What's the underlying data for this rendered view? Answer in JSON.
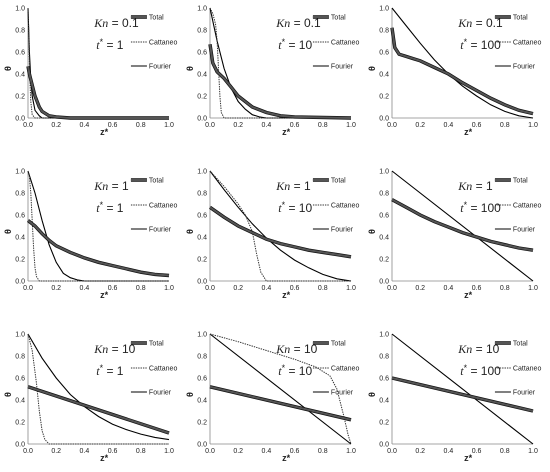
{
  "figure": {
    "legend_labels": [
      "Total",
      "Cattaneo",
      "Fourier"
    ],
    "xlabel": "z*",
    "ylabel": "θ",
    "x_ticks": [
      "0.0",
      "0.2",
      "0.4",
      "0.6",
      "0.8",
      "1.0"
    ],
    "y_ticks": [
      "0.0",
      "0.2",
      "0.4",
      "0.6",
      "0.8",
      "1.0"
    ],
    "colors": {
      "total": "#555555",
      "total_edge": "#111111",
      "cattaneo": "#333333",
      "fourier": "#000000"
    }
  },
  "chart_data": [
    {
      "type": "line",
      "kn": "0.1",
      "t": "1",
      "xlim": [
        0,
        1
      ],
      "ylim": [
        0,
        1
      ],
      "series": [
        {
          "name": "Total",
          "x": [
            0,
            0.01,
            0.03,
            0.05,
            0.08,
            0.1,
            0.15,
            0.2,
            0.3,
            0.5,
            1.0
          ],
          "y": [
            0.47,
            0.4,
            0.3,
            0.2,
            0.1,
            0.06,
            0.02,
            0.01,
            0,
            0,
            0
          ]
        },
        {
          "name": "Cattaneo",
          "x": [
            0,
            0.005,
            0.01,
            0.015,
            0.02,
            0.03,
            0.05,
            1.0
          ],
          "y": [
            1.0,
            0.8,
            0.5,
            0.3,
            0.15,
            0.03,
            0,
            0
          ]
        },
        {
          "name": "Fourier",
          "x": [
            0,
            0.005,
            0.01,
            0.02,
            0.03,
            0.05,
            0.08,
            0.1,
            1.0
          ],
          "y": [
            1.0,
            0.8,
            0.6,
            0.35,
            0.2,
            0.07,
            0.02,
            0,
            0
          ]
        }
      ]
    },
    {
      "type": "line",
      "kn": "0.1",
      "t": "10",
      "xlim": [
        0,
        1
      ],
      "ylim": [
        0,
        1
      ],
      "series": [
        {
          "name": "Total",
          "x": [
            0,
            0.02,
            0.05,
            0.1,
            0.15,
            0.2,
            0.3,
            0.4,
            0.5,
            0.6,
            1.0
          ],
          "y": [
            0.67,
            0.5,
            0.42,
            0.36,
            0.28,
            0.2,
            0.1,
            0.05,
            0.02,
            0.01,
            0
          ]
        },
        {
          "name": "Cattaneo",
          "x": [
            0,
            0.02,
            0.04,
            0.05,
            0.06,
            0.07,
            0.08,
            0.1,
            1.0
          ],
          "y": [
            1.0,
            0.95,
            0.85,
            0.7,
            0.45,
            0.2,
            0.05,
            0,
            0
          ]
        },
        {
          "name": "Fourier",
          "x": [
            0,
            0.05,
            0.1,
            0.15,
            0.2,
            0.25,
            0.3,
            0.35,
            0.4,
            1.0
          ],
          "y": [
            1.0,
            0.7,
            0.45,
            0.27,
            0.15,
            0.08,
            0.03,
            0.01,
            0,
            0
          ]
        }
      ]
    },
    {
      "type": "line",
      "kn": "0.1",
      "t": "100",
      "xlim": [
        0,
        1
      ],
      "ylim": [
        0,
        1
      ],
      "series": [
        {
          "name": "Total",
          "x": [
            0,
            0.02,
            0.05,
            0.1,
            0.15,
            0.2,
            0.3,
            0.4,
            0.5,
            0.6,
            0.7,
            0.8,
            0.9,
            1.0
          ],
          "y": [
            0.82,
            0.64,
            0.58,
            0.56,
            0.54,
            0.52,
            0.46,
            0.4,
            0.32,
            0.25,
            0.18,
            0.12,
            0.07,
            0.04
          ]
        },
        {
          "name": "Cattaneo",
          "x": [
            0,
            0.02,
            0.05,
            0.1,
            0.2,
            0.3,
            0.4,
            0.5,
            0.6,
            0.7,
            0.8,
            0.9,
            1.0
          ],
          "y": [
            0.8,
            0.64,
            0.59,
            0.56,
            0.52,
            0.46,
            0.4,
            0.32,
            0.25,
            0.18,
            0.12,
            0.07,
            0.04
          ]
        },
        {
          "name": "Fourier",
          "x": [
            0,
            0.1,
            0.2,
            0.3,
            0.4,
            0.5,
            0.6,
            0.7,
            0.8,
            0.9,
            1.0
          ],
          "y": [
            1.0,
            0.84,
            0.68,
            0.53,
            0.4,
            0.29,
            0.2,
            0.12,
            0.06,
            0.02,
            0
          ]
        }
      ]
    },
    {
      "type": "line",
      "kn": "1",
      "t": "1",
      "xlim": [
        0,
        1
      ],
      "ylim": [
        0,
        1
      ],
      "series": [
        {
          "name": "Total",
          "x": [
            0,
            0.05,
            0.1,
            0.15,
            0.2,
            0.3,
            0.4,
            0.5,
            0.6,
            0.7,
            0.8,
            0.9,
            1.0
          ],
          "y": [
            0.55,
            0.5,
            0.43,
            0.37,
            0.32,
            0.26,
            0.21,
            0.17,
            0.14,
            0.11,
            0.08,
            0.06,
            0.05
          ]
        },
        {
          "name": "Cattaneo",
          "x": [
            0,
            0.01,
            0.02,
            0.03,
            0.04,
            0.05,
            0.06,
            0.08,
            1.0
          ],
          "y": [
            1.0,
            0.95,
            0.8,
            0.55,
            0.3,
            0.12,
            0.04,
            0,
            0
          ]
        },
        {
          "name": "Fourier",
          "x": [
            0,
            0.05,
            0.1,
            0.15,
            0.2,
            0.25,
            0.3,
            0.35,
            0.4,
            0.5,
            1.0
          ],
          "y": [
            1.0,
            0.8,
            0.55,
            0.33,
            0.17,
            0.07,
            0.03,
            0.01,
            0,
            0,
            0
          ]
        }
      ]
    },
    {
      "type": "line",
      "kn": "1",
      "t": "10",
      "xlim": [
        0,
        1
      ],
      "ylim": [
        0,
        1
      ],
      "series": [
        {
          "name": "Total",
          "x": [
            0,
            0.1,
            0.2,
            0.3,
            0.4,
            0.5,
            0.6,
            0.7,
            0.8,
            0.9,
            1.0
          ],
          "y": [
            0.67,
            0.58,
            0.5,
            0.44,
            0.38,
            0.34,
            0.31,
            0.28,
            0.26,
            0.24,
            0.22
          ]
        },
        {
          "name": "Cattaneo",
          "x": [
            0,
            0.1,
            0.2,
            0.25,
            0.3,
            0.33,
            0.36,
            0.4,
            0.5,
            1.0
          ],
          "y": [
            1.0,
            0.86,
            0.7,
            0.6,
            0.45,
            0.25,
            0.08,
            0,
            0,
            0
          ]
        },
        {
          "name": "Fourier",
          "x": [
            0,
            0.1,
            0.2,
            0.3,
            0.4,
            0.5,
            0.6,
            0.7,
            0.8,
            0.9,
            1.0
          ],
          "y": [
            1.0,
            0.83,
            0.67,
            0.52,
            0.39,
            0.28,
            0.19,
            0.12,
            0.06,
            0.02,
            0
          ]
        }
      ]
    },
    {
      "type": "line",
      "kn": "1",
      "t": "100",
      "xlim": [
        0,
        1
      ],
      "ylim": [
        0,
        1
      ],
      "series": [
        {
          "name": "Total",
          "x": [
            0,
            0.1,
            0.2,
            0.3,
            0.4,
            0.5,
            0.6,
            0.7,
            0.8,
            0.9,
            1.0
          ],
          "y": [
            0.74,
            0.67,
            0.6,
            0.54,
            0.49,
            0.44,
            0.4,
            0.36,
            0.33,
            0.3,
            0.28
          ]
        },
        {
          "name": "Cattaneo",
          "x": [
            0,
            0.1,
            0.2,
            0.3,
            0.4,
            0.5,
            0.6,
            0.7,
            0.8,
            0.9,
            1.0
          ],
          "y": [
            0.73,
            0.66,
            0.6,
            0.54,
            0.48,
            0.44,
            0.4,
            0.36,
            0.33,
            0.3,
            0.28
          ]
        },
        {
          "name": "Fourier",
          "x": [
            0,
            1.0
          ],
          "y": [
            1.0,
            0
          ]
        }
      ]
    },
    {
      "type": "line",
      "kn": "10",
      "t": "1",
      "xlim": [
        0,
        1
      ],
      "ylim": [
        0,
        1
      ],
      "series": [
        {
          "name": "Total",
          "x": [
            0,
            1.0
          ],
          "y": [
            0.52,
            0.1
          ]
        },
        {
          "name": "Cattaneo",
          "x": [
            0,
            0.03,
            0.06,
            0.08,
            0.1,
            0.12,
            0.15,
            0.2,
            1.0
          ],
          "y": [
            1.0,
            0.85,
            0.55,
            0.3,
            0.12,
            0.04,
            0,
            0,
            0
          ]
        },
        {
          "name": "Fourier",
          "x": [
            0,
            0.1,
            0.2,
            0.3,
            0.4,
            0.5,
            0.6,
            0.7,
            0.8,
            0.9,
            1.0
          ],
          "y": [
            1.0,
            0.78,
            0.6,
            0.45,
            0.34,
            0.25,
            0.18,
            0.13,
            0.09,
            0.06,
            0.04
          ]
        }
      ]
    },
    {
      "type": "line",
      "kn": "10",
      "t": "10",
      "xlim": [
        0,
        1
      ],
      "ylim": [
        0,
        1
      ],
      "series": [
        {
          "name": "Total",
          "x": [
            0,
            1.0
          ],
          "y": [
            0.52,
            0.22
          ]
        },
        {
          "name": "Cattaneo",
          "x": [
            0,
            0.2,
            0.4,
            0.6,
            0.75,
            0.85,
            0.9,
            0.95,
            0.98,
            1.0
          ],
          "y": [
            1.0,
            0.93,
            0.85,
            0.77,
            0.7,
            0.62,
            0.5,
            0.25,
            0.08,
            0
          ]
        },
        {
          "name": "Fourier",
          "x": [
            0,
            1.0
          ],
          "y": [
            1.0,
            0
          ]
        }
      ]
    },
    {
      "type": "line",
      "kn": "10",
      "t": "100",
      "xlim": [
        0,
        1
      ],
      "ylim": [
        0,
        1
      ],
      "series": [
        {
          "name": "Total",
          "x": [
            0,
            1.0
          ],
          "y": [
            0.6,
            0.3
          ]
        },
        {
          "name": "Cattaneo",
          "x": [
            0,
            1.0
          ],
          "y": [
            0.6,
            0.3
          ]
        },
        {
          "name": "Fourier",
          "x": [
            0,
            1.0
          ],
          "y": [
            1.0,
            0
          ]
        }
      ]
    }
  ]
}
